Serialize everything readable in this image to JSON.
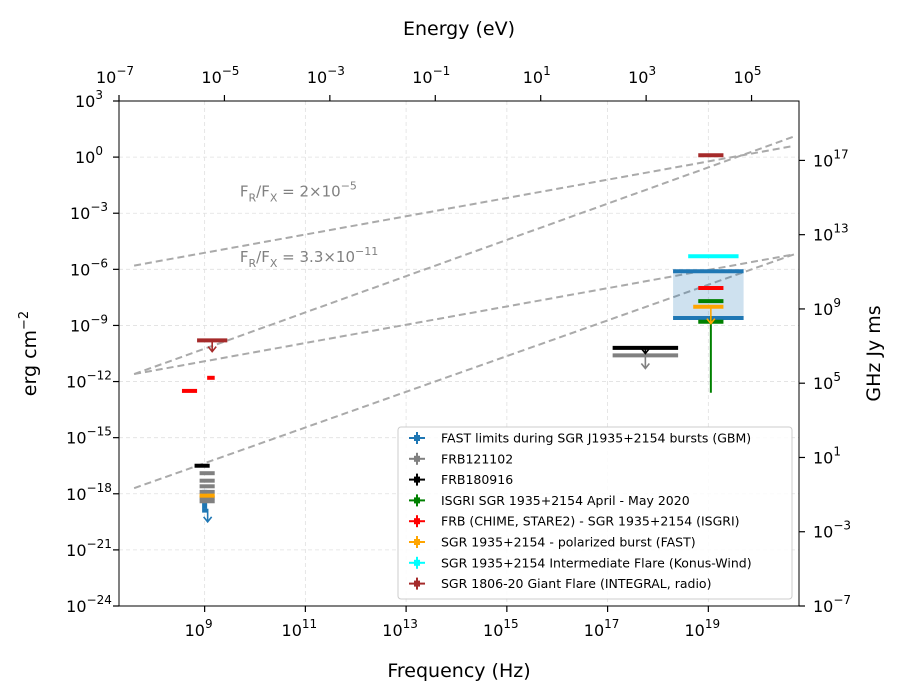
{
  "chart_data": {
    "type": "scatter",
    "title": "",
    "xlabel": "Frequency (Hz)",
    "ylabel": "erg cm",
    "ylabel_exp": "−2",
    "x2label": "Energy (eV)",
    "y2label": "GHz Jy ms",
    "xscale": "log",
    "yscale": "log",
    "xlim_log10": [
      7.3,
      20.8
    ],
    "ylim_log10": [
      -24,
      3
    ],
    "y2lim_log10": [
      -7,
      20.2
    ],
    "x2lim_log10": [
      -7,
      5.9
    ],
    "x_ticks": [
      {
        "base": "10",
        "exp": "9",
        "log": 9
      },
      {
        "base": "10",
        "exp": "11",
        "log": 11
      },
      {
        "base": "10",
        "exp": "13",
        "log": 13
      },
      {
        "base": "10",
        "exp": "15",
        "log": 15
      },
      {
        "base": "10",
        "exp": "17",
        "log": 17
      },
      {
        "base": "10",
        "exp": "19",
        "log": 19
      }
    ],
    "x2_ticks": [
      {
        "base": "10",
        "exp": "−7",
        "log": -7
      },
      {
        "base": "10",
        "exp": "−5",
        "log": -5
      },
      {
        "base": "10",
        "exp": "−3",
        "log": -3
      },
      {
        "base": "10",
        "exp": "−1",
        "log": -1
      },
      {
        "base": "10",
        "exp": "1",
        "log": 1
      },
      {
        "base": "10",
        "exp": "3",
        "log": 3
      },
      {
        "base": "10",
        "exp": "5",
        "log": 5
      }
    ],
    "y_ticks": [
      {
        "base": "10",
        "exp": "3",
        "log": 3
      },
      {
        "base": "10",
        "exp": "0",
        "log": 0
      },
      {
        "base": "10",
        "exp": "−3",
        "log": -3
      },
      {
        "base": "10",
        "exp": "−6",
        "log": -6
      },
      {
        "base": "10",
        "exp": "−9",
        "log": -9
      },
      {
        "base": "10",
        "exp": "−12",
        "log": -12
      },
      {
        "base": "10",
        "exp": "−15",
        "log": -15
      },
      {
        "base": "10",
        "exp": "−18",
        "log": -18
      },
      {
        "base": "10",
        "exp": "−21",
        "log": -21
      },
      {
        "base": "10",
        "exp": "−24",
        "log": -24
      }
    ],
    "y2_ticks": [
      {
        "base": "10",
        "exp": "17",
        "log": 17
      },
      {
        "base": "10",
        "exp": "13",
        "log": 13
      },
      {
        "base": "10",
        "exp": "9",
        "log": 9
      },
      {
        "base": "10",
        "exp": "5",
        "log": 5
      },
      {
        "base": "10",
        "exp": "1",
        "log": 1
      },
      {
        "base": "10",
        "exp": "−3",
        "log": -3
      },
      {
        "base": "10",
        "exp": "−7",
        "log": -7
      }
    ],
    "annotations": [
      {
        "main": "F",
        "sub1": "R",
        "slash": "/F",
        "sub2": "X",
        "rest": "  =  2×10",
        "sup": "−5",
        "x_log": 9.7,
        "y_log": -2.1
      },
      {
        "main": "F",
        "sub1": "R",
        "slash": "/F",
        "sub2": "X",
        "rest": "  =  3.3×10",
        "sup": "−11",
        "x_log": 9.7,
        "y_log": -5.6
      }
    ],
    "dashed_lines_log10": [
      {
        "x": [
          7.6,
          20.7
        ],
        "y": [
          -5.8,
          0.6
        ]
      },
      {
        "x": [
          7.6,
          20.7
        ],
        "y": [
          -11.6,
          1.1
        ]
      },
      {
        "x": [
          7.6,
          20.7
        ],
        "y": [
          -11.6,
          -5.2
        ]
      },
      {
        "x": [
          7.6,
          20.7
        ],
        "y": [
          -17.7,
          -5.2
        ]
      }
    ],
    "series": [
      {
        "name": "FAST limits during SGR J1935+2154 bursts (GBM)",
        "color": "#1f77b4",
        "segments": [
          {
            "x": [
              8.95,
              9.05
            ],
            "y": -17.9
          },
          {
            "x": [
              8.95,
              9.05
            ],
            "y": -18.1
          },
          {
            "x": [
              8.95,
              9.05
            ],
            "y": -18.3
          },
          {
            "x": [
              8.95,
              9.05
            ],
            "y": -18.5
          },
          {
            "x": [
              8.95,
              9.05
            ],
            "y": -18.7
          },
          {
            "x": [
              8.95,
              9.05
            ],
            "y": -18.9
          },
          {
            "x": [
              18.3,
              19.7
            ],
            "y": -6.1
          },
          {
            "x": [
              18.3,
              19.7
            ],
            "y": -8.6
          }
        ],
        "arrows": [
          {
            "x": 9.06,
            "y": [
              -18.8,
              -19.5
            ]
          }
        ],
        "box": {
          "x": [
            18.3,
            19.7
          ],
          "y": [
            -8.6,
            -6.1
          ]
        }
      },
      {
        "name": "FRB121102",
        "color": "#808080",
        "segments": [
          {
            "x": [
              8.9,
              9.2
            ],
            "y": -16.9
          },
          {
            "x": [
              8.9,
              9.2
            ],
            "y": -17.3
          },
          {
            "x": [
              8.9,
              9.2
            ],
            "y": -17.6
          },
          {
            "x": [
              8.9,
              9.2
            ],
            "y": -17.9
          },
          {
            "x": [
              8.9,
              9.2
            ],
            "y": -18.2
          },
          {
            "x": [
              8.9,
              9.2
            ],
            "y": -18.4
          },
          {
            "x": [
              17.1,
              18.4
            ],
            "y": -10.6
          }
        ],
        "arrows": [
          {
            "x": 17.75,
            "y": [
              -10.6,
              -11.3
            ]
          }
        ]
      },
      {
        "name": "FRB180916",
        "color": "#000000",
        "segments": [
          {
            "x": [
              8.8,
              9.1
            ],
            "y": -16.5
          },
          {
            "x": [
              17.1,
              18.4
            ],
            "y": -10.2
          }
        ],
        "arrows": [
          {
            "x": 17.75,
            "y": [
              -10.2,
              -10.5
            ]
          }
        ]
      },
      {
        "name": "ISGRI SGR 1935+2154 April - May 2020",
        "color": "#008000",
        "segments": [
          {
            "x": [
              18.8,
              19.3
            ],
            "y": -7.7
          },
          {
            "x": [
              18.8,
              19.3
            ],
            "y": -8.8
          }
        ],
        "vlines": [
          {
            "x": 19.05,
            "y": [
              -12.6,
              -8.5
            ]
          }
        ]
      },
      {
        "name": "FRB (CHIME, STARE2) - SGR 1935+2154 (ISGRI)",
        "color": "#ff0000",
        "segments": [
          {
            "x": [
              8.55,
              8.85
            ],
            "y": -12.5
          },
          {
            "x": [
              9.05,
              9.2
            ],
            "y": -11.8
          },
          {
            "x": [
              18.8,
              19.3
            ],
            "y": -7.0
          }
        ]
      },
      {
        "name": "SGR 1935+2154 - polarized burst (FAST)",
        "color": "#ffa500",
        "segments": [
          {
            "x": [
              8.9,
              9.2
            ],
            "y": -18.1
          },
          {
            "x": [
              18.7,
              19.3
            ],
            "y": -8.0
          }
        ],
        "arrows": [
          {
            "x": 19.05,
            "y": [
              -8.0,
              -8.9
            ]
          }
        ]
      },
      {
        "name": "SGR 1935+2154 Intermediate Flare (Konus-Wind)",
        "color": "#00ffff",
        "segments": [
          {
            "x": [
              18.6,
              19.6
            ],
            "y": -5.3
          }
        ]
      },
      {
        "name": "SGR 1806-20 Giant Flare (INTEGRAL, radio)",
        "color": "#a52a2a",
        "segments": [
          {
            "x": [
              8.85,
              9.45
            ],
            "y": -9.8
          },
          {
            "x": [
              18.8,
              19.3
            ],
            "y": 0.1
          }
        ],
        "arrows": [
          {
            "x": 9.15,
            "y": [
              -9.8,
              -10.4
            ]
          }
        ]
      }
    ],
    "legend_position": "lower-right",
    "grid": true
  }
}
